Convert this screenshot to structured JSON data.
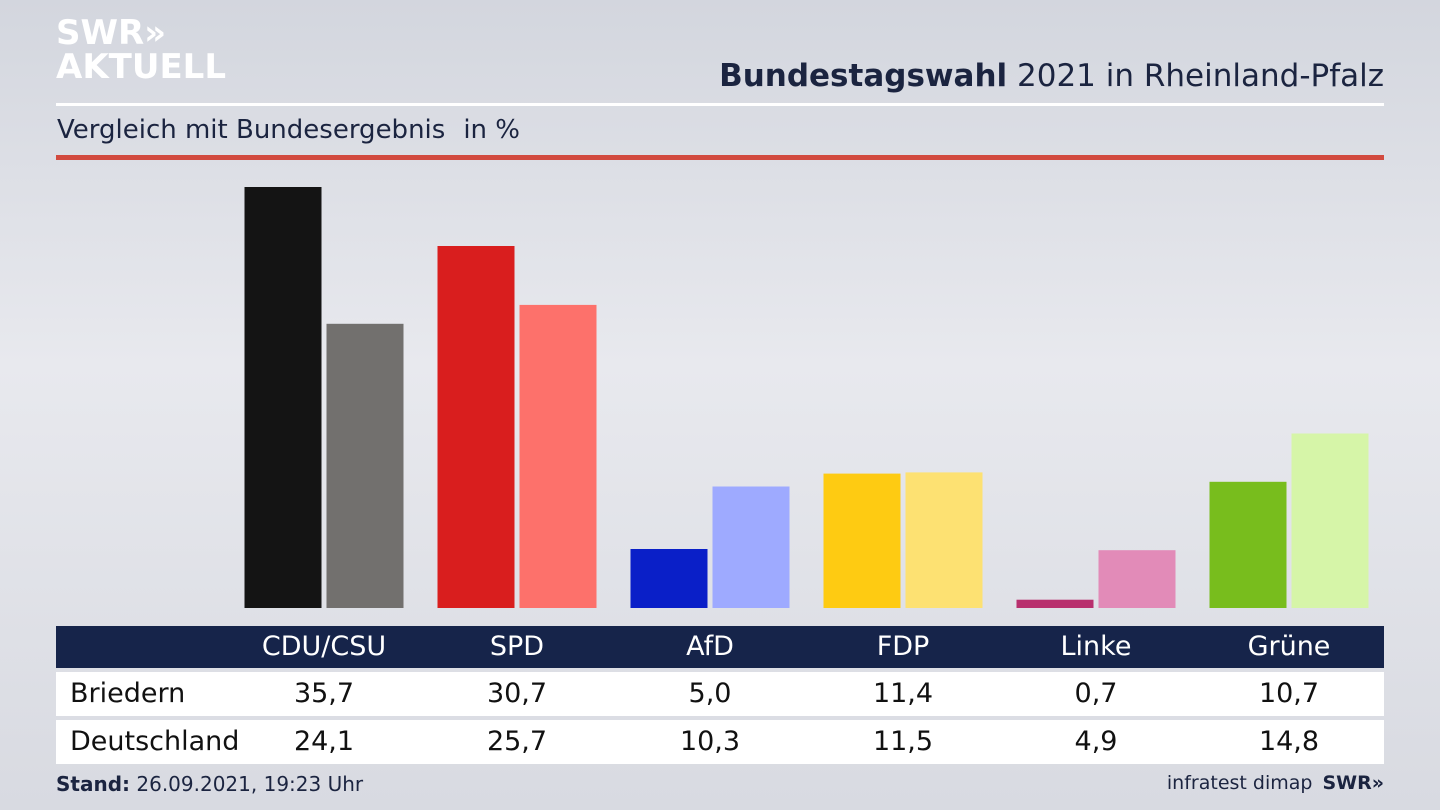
{
  "logo": {
    "line1": "SWR»",
    "line2": "AKTUELL"
  },
  "header": {
    "title_bold": "Bundestagswahl",
    "title_rest": " 2021 in Rheinland-Pfalz"
  },
  "subheader": {
    "text": "Vergleich mit Bundesergebnis",
    "unit": "in %"
  },
  "chart_data": {
    "type": "bar",
    "title": "Bundestagswahl 2021 in Rheinland-Pfalz",
    "subtitle": "Vergleich mit Bundesergebnis in %",
    "categories": [
      "CDU/CSU",
      "SPD",
      "AfD",
      "FDP",
      "Linke",
      "Grüne"
    ],
    "series": [
      {
        "name": "Briedern",
        "values": [
          35.7,
          30.7,
          5.0,
          11.4,
          0.7,
          10.7
        ],
        "colors": [
          "#141414",
          "#d91e1e",
          "#0a1fc8",
          "#fecb12",
          "#b8306e",
          "#78bd1d"
        ]
      },
      {
        "name": "Deutschland",
        "values": [
          24.1,
          25.7,
          10.3,
          11.5,
          4.9,
          14.8
        ],
        "colors": [
          "#72706e",
          "#fd716b",
          "#9eaaff",
          "#fde172",
          "#e28bb8",
          "#d6f5a8"
        ]
      }
    ],
    "value_labels": [
      [
        "35,7",
        "30,7",
        "5,0",
        "11,4",
        "0,7",
        "10,7"
      ],
      [
        "24,1",
        "25,7",
        "10,3",
        "11,5",
        "4,9",
        "14,8"
      ]
    ],
    "ylim": [
      0,
      35.7
    ],
    "grid": false,
    "legend": "table-below"
  },
  "footer": {
    "stand_label": "Stand:",
    "stand_value": " 26.09.2021, 19:23 Uhr",
    "source": "infratest dimap",
    "brand": "SWR»"
  }
}
